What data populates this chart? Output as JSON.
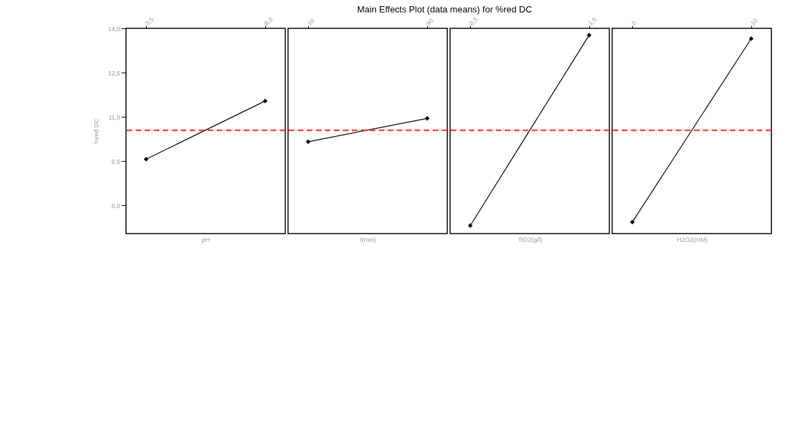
{
  "chart_data": [
    {
      "type": "other",
      "title": "Main Effects Plot (data means) for %red DC"
    },
    {
      "type": "line",
      "xlabel": "pH",
      "ylabel": "%red DC",
      "x": [
        3.5,
        8.0
      ],
      "values": [
        9.57,
        11.54
      ],
      "color": "#000000",
      "marker": "diamond",
      "xlim": [
        2.74,
        8.76
      ],
      "xticks": [
        {
          "value": 3.5,
          "label": "3,5"
        },
        {
          "value": 8.0,
          "label": "8,0"
        }
      ],
      "ylim": [
        7.05,
        14.0
      ],
      "yticks": [
        {
          "value": 8.0,
          "label": "8,0"
        },
        {
          "value": 9.5,
          "label": "9,5"
        },
        {
          "value": 11.0,
          "label": "11,0"
        },
        {
          "value": 12.5,
          "label": "12,5"
        },
        {
          "value": 14.0,
          "label": "14,0"
        }
      ],
      "ref_lines": [
        {
          "axis": "y",
          "value": 10.55,
          "color": "#ff2020",
          "line_style": "dashed"
        }
      ],
      "grid": false
    },
    {
      "type": "line",
      "xlabel": "t(min)",
      "x": [
        10,
        90
      ],
      "values": [
        10.16,
        10.95
      ],
      "color": "#000000",
      "marker": "diamond",
      "xlim": [
        -3.5,
        103.5
      ],
      "xticks": [
        10,
        90
      ],
      "ylim": [
        7.05,
        14.0
      ],
      "tick_labels": "x",
      "ref_lines": [
        {
          "axis": "y",
          "value": 10.55,
          "color": "#ff2020",
          "line_style": "dashed"
        }
      ],
      "grid": false
    },
    {
      "type": "line",
      "xlabel": "TiO2(g/l)",
      "x": [
        0.5,
        1.5
      ],
      "values": [
        7.32,
        13.77
      ],
      "color": "#000000",
      "marker": "diamond",
      "xlim": [
        0.33,
        1.67
      ],
      "xticks": [
        {
          "value": 0.5,
          "label": "0,5"
        },
        {
          "value": 1.5,
          "label": "1,5"
        }
      ],
      "ylim": [
        7.05,
        14.0
      ],
      "tick_labels": "x",
      "ref_lines": [
        {
          "axis": "y",
          "value": 10.55,
          "color": "#ff2020",
          "line_style": "dashed"
        }
      ],
      "grid": false
    },
    {
      "type": "line",
      "xlabel": "H2O2(mM)",
      "x": [
        0,
        10
      ],
      "values": [
        7.44,
        13.65
      ],
      "color": "#000000",
      "marker": "diamond",
      "xlim": [
        -1.7,
        11.7
      ],
      "xticks": [
        0,
        10
      ],
      "ylim": [
        7.05,
        14.0
      ],
      "tick_labels": "x",
      "ref_lines": [
        {
          "axis": "y",
          "value": 10.55,
          "color": "#ff2020",
          "line_style": "dashed"
        }
      ],
      "grid": false
    }
  ]
}
